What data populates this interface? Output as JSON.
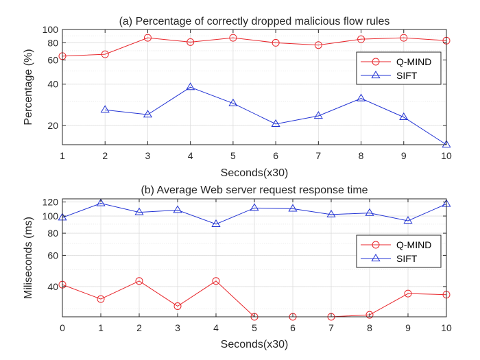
{
  "chart_data": [
    {
      "type": "line",
      "title": "(a) Percentage of correctly dropped malicious flow rules",
      "xlabel": "Seconds(x30)",
      "ylabel": "Percentage (%)",
      "yscale": "log",
      "xlim": [
        1,
        10
      ],
      "ylim": [
        14.5,
        100
      ],
      "grid": true,
      "legend_position": "center-right",
      "x_ticks": [
        1,
        2,
        3,
        4,
        5,
        6,
        7,
        8,
        9,
        10
      ],
      "y_ticks": [
        20,
        40,
        60,
        80,
        100
      ],
      "series": [
        {
          "name": "Q-MIND",
          "color": "#e8262b",
          "marker": "circle",
          "x": [
            1,
            2,
            3,
            4,
            5,
            6,
            7,
            8,
            9,
            10
          ],
          "y": [
            64,
            66,
            87,
            81,
            87,
            80,
            77,
            85,
            87,
            83
          ]
        },
        {
          "name": "SIFT",
          "color": "#2233d4",
          "marker": "triangle",
          "x": [
            2,
            3,
            4,
            5,
            6,
            7,
            8,
            9,
            10
          ],
          "y": [
            26,
            24,
            38,
            29,
            20.5,
            23.5,
            31.5,
            23,
            14.5
          ]
        }
      ]
    },
    {
      "type": "line",
      "title": "(b) Average Web server request response time",
      "xlabel": "Seconds(x30)",
      "ylabel": "Miliseconds (ms)",
      "yscale": "log",
      "xlim": [
        0,
        10
      ],
      "ylim": [
        27,
        125
      ],
      "grid": true,
      "legend_position": "center-right",
      "x_ticks": [
        0,
        1,
        2,
        3,
        4,
        5,
        6,
        7,
        8,
        9,
        10
      ],
      "y_ticks": [
        40,
        60,
        80,
        100,
        120
      ],
      "series": [
        {
          "name": "Q-MIND",
          "color": "#e8262b",
          "marker": "circle",
          "x": [
            0,
            1,
            2,
            3,
            4,
            5,
            6,
            7,
            8,
            9,
            10
          ],
          "y": [
            41,
            34,
            43,
            31,
            43,
            27,
            27,
            27,
            27.7,
            36.5,
            36
          ]
        },
        {
          "name": "SIFT",
          "color": "#2233d4",
          "marker": "triangle",
          "x": [
            0,
            1,
            2,
            3,
            4,
            5,
            6,
            7,
            8,
            9,
            10
          ],
          "y": [
            98,
            118,
            105,
            108,
            90,
            111,
            110,
            102,
            104,
            94,
            117
          ]
        }
      ]
    }
  ]
}
